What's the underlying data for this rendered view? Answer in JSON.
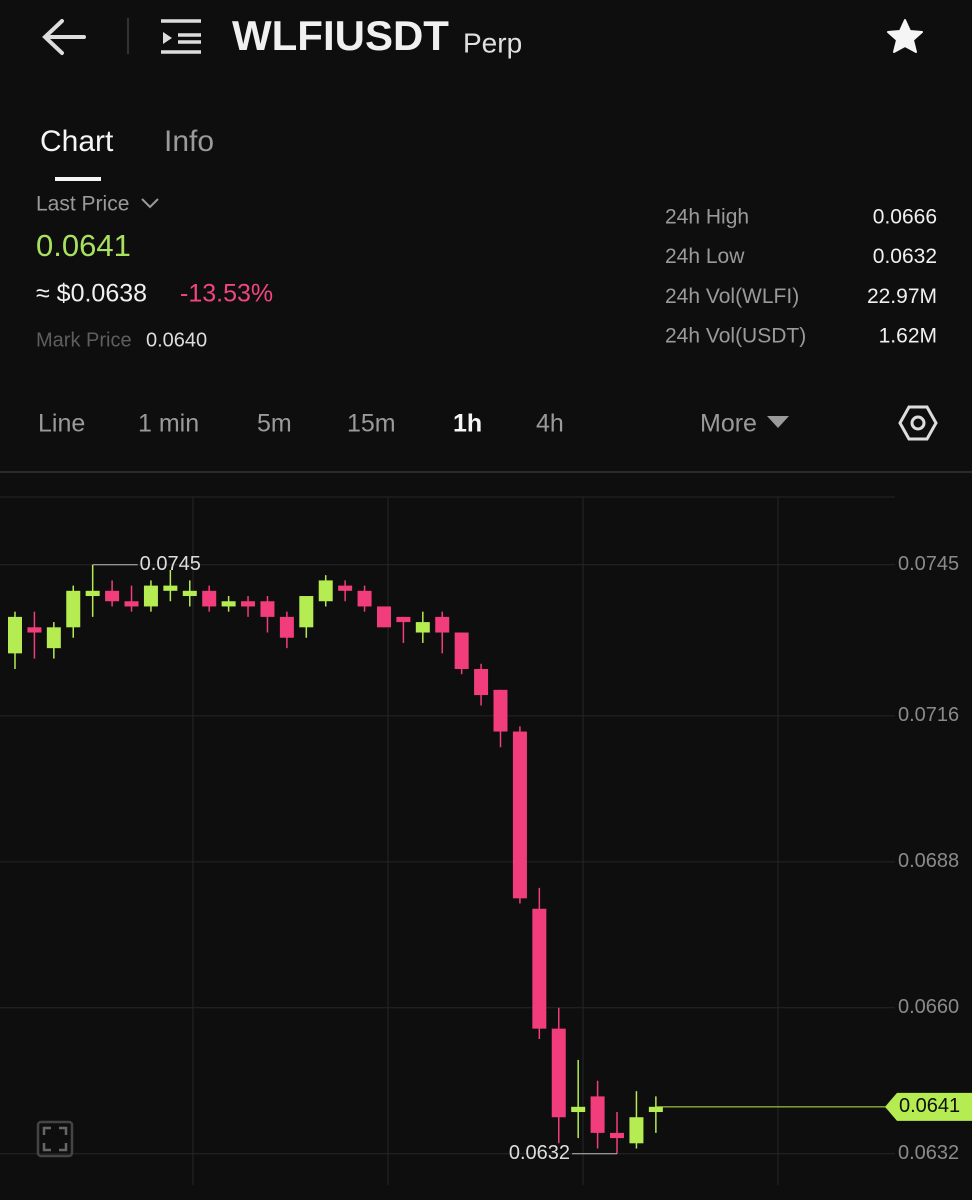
{
  "header": {
    "symbol": "WLFIUSDT",
    "suffix": "Perp"
  },
  "tabs": [
    "Chart",
    "Info"
  ],
  "price": {
    "last_label": "Last Price",
    "last": "0.0641",
    "usd": "≈ $0.0638",
    "change": "-13.53%",
    "mark_label": "Mark Price",
    "mark": "0.0640"
  },
  "stats": [
    [
      "24h High",
      "0.0666"
    ],
    [
      "24h Low",
      "0.0632"
    ],
    [
      "24h Vol(WLFI)",
      "22.97M"
    ],
    [
      "24h Vol(USDT)",
      "1.62M"
    ]
  ],
  "intervals": [
    "Line",
    "1 min",
    "5m",
    "15m",
    "1h",
    "4h"
  ],
  "more": "More",
  "chart_data": {
    "type": "candlestick",
    "open": [
      0.0728,
      0.0733,
      0.0729,
      0.0733,
      0.0739,
      0.074,
      0.0738,
      0.0737,
      0.074,
      0.0739,
      0.074,
      0.0737,
      0.0738,
      0.0738,
      0.0735,
      0.0733,
      0.0738,
      0.0741,
      0.074,
      0.0737,
      0.0735,
      0.0732,
      0.0735,
      0.0732,
      0.0725,
      0.0721,
      0.0713,
      0.0679,
      0.0656,
      0.064,
      0.0643,
      0.0636,
      0.0634,
      0.064
    ],
    "high": [
      0.0736,
      0.0736,
      0.0734,
      0.0741,
      0.0745,
      0.0742,
      0.0741,
      0.0742,
      0.0744,
      0.0742,
      0.0741,
      0.0739,
      0.0739,
      0.0739,
      0.0736,
      0.0739,
      0.0743,
      0.0742,
      0.0741,
      0.0737,
      0.0735,
      0.0736,
      0.0736,
      0.0732,
      0.0726,
      0.0721,
      0.0714,
      0.0683,
      0.066,
      0.065,
      0.0646,
      0.064,
      0.0644,
      0.0643
    ],
    "low": [
      0.0725,
      0.0727,
      0.0727,
      0.0731,
      0.0735,
      0.0737,
      0.0736,
      0.0736,
      0.0738,
      0.0737,
      0.0736,
      0.0736,
      0.0735,
      0.0732,
      0.0729,
      0.0731,
      0.0737,
      0.0738,
      0.0736,
      0.0733,
      0.073,
      0.073,
      0.0728,
      0.0724,
      0.0718,
      0.071,
      0.068,
      0.0654,
      0.0634,
      0.0635,
      0.0633,
      0.0632,
      0.0633,
      0.0636
    ],
    "close": [
      0.0735,
      0.0732,
      0.0733,
      0.074,
      0.074,
      0.0738,
      0.0737,
      0.0741,
      0.0741,
      0.074,
      0.0737,
      0.0738,
      0.0737,
      0.0735,
      0.0731,
      0.0739,
      0.0742,
      0.074,
      0.0737,
      0.0733,
      0.0734,
      0.0734,
      0.0732,
      0.0725,
      0.072,
      0.0713,
      0.0681,
      0.0656,
      0.0639,
      0.0641,
      0.0636,
      0.0635,
      0.0639,
      0.0641
    ],
    "up_color": "#b4ec51",
    "down_color": "#f23d7c",
    "ylim": [
      0.0626,
      0.0758
    ],
    "yticks": [
      0.0745,
      0.0716,
      0.0688,
      {
        "value": 0.066,
        "label": "0.0660"
      },
      0.0632
    ],
    "grid": true,
    "max_price": 0.0745,
    "min_price": 0.0632,
    "last_price": 0.0641
  }
}
